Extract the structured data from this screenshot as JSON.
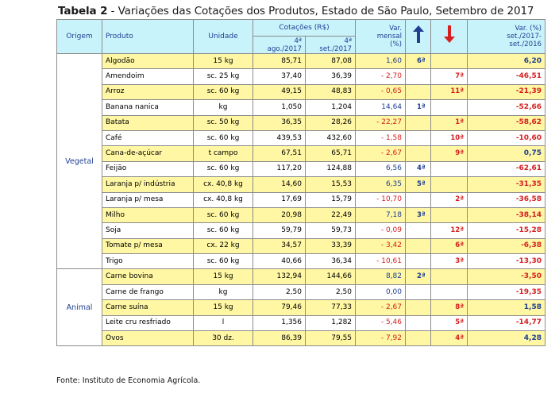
{
  "title": {
    "bold": "Tabela 2",
    "rest": " - Variações das Cotações dos Produtos, Estado de São Paulo, Setembro de 2017"
  },
  "header": {
    "origem": "Origem",
    "produto": "Produto",
    "unidade": "Unidade",
    "cotacoes": "Cotações (R$)",
    "q1_line1": "4ª",
    "q1_line2": "ago./2017",
    "q2_line1": "4ª",
    "q2_line2": "set./2017",
    "var_mensal": [
      "Var.",
      "mensal",
      "(%)"
    ],
    "var_anual": [
      "Var. (%)",
      "set./2017-",
      "set./2016"
    ],
    "up_icon": "arrow-up-icon",
    "down_icon": "arrow-down-icon"
  },
  "colors": {
    "header_bg": "#c9f3fb",
    "highlight_row": "#fff7a3",
    "positive": "#1f3f93",
    "negative": "#d62020"
  },
  "groups": [
    {
      "name": "Vegetal",
      "rows": [
        {
          "produto": "Algodão",
          "unidade": "15 kg",
          "ago": "85,71",
          "set": "87,08",
          "var": "1,60",
          "up": "6ª",
          "down": "",
          "anual": "6,20"
        },
        {
          "produto": "Amendoim",
          "unidade": "sc. 25 kg",
          "ago": "37,40",
          "set": "36,39",
          "var": "- 2,70",
          "up": "",
          "down": "7ª",
          "anual": "-46,51"
        },
        {
          "produto": "Arroz",
          "unidade": "sc. 60 kg",
          "ago": "49,15",
          "set": "48,83",
          "var": "- 0,65",
          "up": "",
          "down": "11ª",
          "anual": "-21,39"
        },
        {
          "produto": "Banana nanica",
          "unidade": "kg",
          "ago": "1,050",
          "set": "1,204",
          "var": "14,64",
          "up": "1ª",
          "down": "",
          "anual": "-52,66"
        },
        {
          "produto": "Batata",
          "unidade": "sc. 50 kg",
          "ago": "36,35",
          "set": "28,26",
          "var": "- 22,27",
          "up": "",
          "down": "1ª",
          "anual": "-58,62"
        },
        {
          "produto": "Café",
          "unidade": "sc. 60 kg",
          "ago": "439,53",
          "set": "432,60",
          "var": "- 1,58",
          "up": "",
          "down": "10ª",
          "anual": "-10,60"
        },
        {
          "produto": "Cana-de-açúcar",
          "unidade": "t campo",
          "ago": "67,51",
          "set": "65,71",
          "var": "- 2,67",
          "up": "",
          "down": "9ª",
          "anual": "0,75"
        },
        {
          "produto": "Feijão",
          "unidade": "sc. 60 kg",
          "ago": "117,20",
          "set": "124,88",
          "var": "6,56",
          "up": "4ª",
          "down": "",
          "anual": "-62,61"
        },
        {
          "produto": "Laranja p/ indústria",
          "unidade": "cx. 40,8 kg",
          "ago": "14,60",
          "set": "15,53",
          "var": "6,35",
          "up": "5ª",
          "down": "",
          "anual": "-31,35"
        },
        {
          "produto": "Laranja p/ mesa",
          "unidade": "cx. 40,8 kg",
          "ago": "17,69",
          "set": "15,79",
          "var": "- 10,70",
          "up": "",
          "down": "2ª",
          "anual": "-36,58"
        },
        {
          "produto": "Milho",
          "unidade": "sc. 60 kg",
          "ago": "20,98",
          "set": "22,49",
          "var": "7,18",
          "up": "3ª",
          "down": "",
          "anual": "-38,14"
        },
        {
          "produto": "Soja",
          "unidade": "sc. 60 kg",
          "ago": "59,79",
          "set": "59,73",
          "var": "- 0,09",
          "up": "",
          "down": "12ª",
          "anual": "-15,28"
        },
        {
          "produto": "Tomate p/ mesa",
          "unidade": "cx. 22 kg",
          "ago": "34,57",
          "set": "33,39",
          "var": "- 3,42",
          "up": "",
          "down": "6ª",
          "anual": "-6,38"
        },
        {
          "produto": "Trigo",
          "unidade": "sc. 60 kg",
          "ago": "40,66",
          "set": "36,34",
          "var": "- 10,61",
          "up": "",
          "down": "3ª",
          "anual": "-13,30"
        }
      ]
    },
    {
      "name": "Animal",
      "rows": [
        {
          "produto": "Carne bovina",
          "unidade": "15 kg",
          "ago": "132,94",
          "set": "144,66",
          "var": "8,82",
          "up": "2ª",
          "down": "",
          "anual": "-3,50"
        },
        {
          "produto": "Carne de frango",
          "unidade": "kg",
          "ago": "2,50",
          "set": "2,50",
          "var": "0,00",
          "up": "",
          "down": "",
          "anual": "-19,35"
        },
        {
          "produto": "Carne suína",
          "unidade": "15 kg",
          "ago": "79,46",
          "set": "77,33",
          "var": "- 2,67",
          "up": "",
          "down": "8ª",
          "anual": "1,58"
        },
        {
          "produto": "Leite cru resfriado",
          "unidade": "l",
          "ago": "1,356",
          "set": "1,282",
          "var": "- 5,46",
          "up": "",
          "down": "5ª",
          "anual": "-14,77"
        },
        {
          "produto": "Ovos",
          "unidade": "30 dz.",
          "ago": "86,39",
          "set": "79,55",
          "var": "- 7,92",
          "up": "",
          "down": "4ª",
          "anual": "4,28"
        }
      ]
    }
  ],
  "source": "Fonte: Instituto de Economia Agrícola."
}
